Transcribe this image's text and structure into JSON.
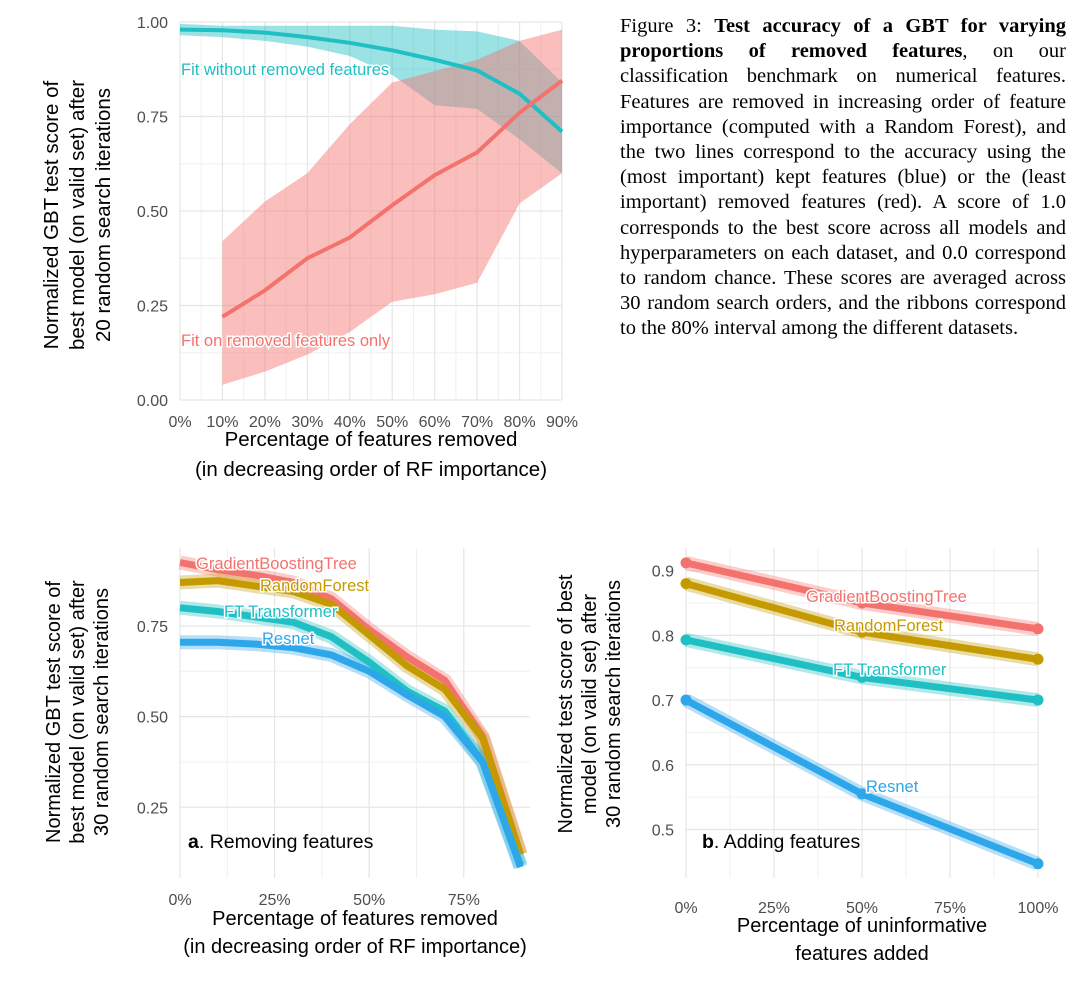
{
  "caption": {
    "label": "Figure 3:",
    "bold": "Test accuracy of a GBT for varying proportions of removed features",
    "text": ", on our classification benchmark on numerical features. Features are removed in increasing order of feature importance (computed with a Random Forest), and the two lines correspond to the accuracy using the (most important) kept features (blue) or the (least important) removed features (red). A score of 1.0 corresponds to the best score across all models and hyperparameters on each dataset, and 0.0 correspond to random chance. These scores are averaged across 30 random search orders, and the ribbons correspond to the 80% interval among the different datasets."
  },
  "chart_data": [
    {
      "id": "top",
      "type": "line",
      "title": "",
      "xlabel": [
        "Percentage of features removed",
        "(in decreasing order of RF importance)"
      ],
      "ylabel": [
        "Normalized GBT test score of",
        "best model (on valid set) after",
        "20 random search iterations"
      ],
      "x_ticks": [
        "0%",
        "10%",
        "20%",
        "30%",
        "40%",
        "50%",
        "60%",
        "70%",
        "80%",
        "90%"
      ],
      "y_ticks": [
        "0.00",
        "0.25",
        "0.50",
        "0.75",
        "1.00"
      ],
      "xlim": [
        0,
        90
      ],
      "ylim": [
        0,
        1
      ],
      "series": [
        {
          "name": "Fit without removed features",
          "color": "#1fbfc4",
          "x": [
            0,
            10,
            20,
            30,
            40,
            50,
            60,
            70,
            80,
            90
          ],
          "values": [
            0.98,
            0.978,
            0.972,
            0.96,
            0.945,
            0.925,
            0.9,
            0.872,
            0.81,
            0.71
          ],
          "lower": [
            0.965,
            0.96,
            0.95,
            0.935,
            0.91,
            0.86,
            0.78,
            0.77,
            0.69,
            0.6
          ],
          "upper": [
            0.995,
            0.99,
            0.99,
            0.99,
            0.99,
            0.99,
            0.98,
            0.975,
            0.95,
            0.84
          ]
        },
        {
          "name": "Fit on removed features only",
          "color": "#f4726d",
          "x": [
            10,
            20,
            30,
            40,
            50,
            60,
            70,
            80,
            90
          ],
          "values": [
            0.22,
            0.29,
            0.375,
            0.43,
            0.515,
            0.595,
            0.655,
            0.76,
            0.845
          ],
          "lower": [
            0.04,
            0.075,
            0.12,
            0.18,
            0.26,
            0.28,
            0.31,
            0.52,
            0.6
          ],
          "upper": [
            0.42,
            0.525,
            0.6,
            0.73,
            0.84,
            0.87,
            0.9,
            0.95,
            0.98
          ]
        }
      ]
    },
    {
      "id": "a",
      "type": "line",
      "panel_label": "a",
      "panel_title": ". Removing features",
      "xlabel": [
        "Percentage of features removed",
        "(in decreasing order of RF importance)"
      ],
      "ylabel": [
        "Normalized GBT test score of",
        "best model (on valid set) after",
        "30 random search iterations"
      ],
      "x_ticks": [
        "0%",
        "25%",
        "50%",
        "75%"
      ],
      "y_ticks": [
        "0.25",
        "0.50",
        "0.75"
      ],
      "xlim": [
        0,
        0.925
      ],
      "ylim": [
        0.055,
        0.965
      ],
      "series": [
        {
          "name": "GradientBoostingTree",
          "color": "#f4726d",
          "x": [
            0,
            0.1,
            0.2,
            0.3,
            0.4,
            0.5,
            0.6,
            0.7,
            0.8,
            0.9
          ],
          "values": [
            0.925,
            0.905,
            0.89,
            0.87,
            0.825,
            0.74,
            0.665,
            0.6,
            0.445,
            0.12
          ]
        },
        {
          "name": "RandomForest",
          "color": "#c49a00",
          "x": [
            0,
            0.1,
            0.2,
            0.3,
            0.4,
            0.5,
            0.6,
            0.7,
            0.8,
            0.9
          ],
          "values": [
            0.87,
            0.875,
            0.86,
            0.845,
            0.81,
            0.725,
            0.64,
            0.575,
            0.44,
            0.12
          ]
        },
        {
          "name": "FT Transformer",
          "color": "#1fbfc4",
          "x": [
            0,
            0.1,
            0.2,
            0.3,
            0.4,
            0.5,
            0.6,
            0.7,
            0.8,
            0.9
          ],
          "values": [
            0.8,
            0.79,
            0.775,
            0.76,
            0.72,
            0.65,
            0.57,
            0.515,
            0.375,
            0.09
          ]
        },
        {
          "name": "Resnet",
          "color": "#2ea6ea",
          "x": [
            0,
            0.1,
            0.2,
            0.3,
            0.4,
            0.5,
            0.6,
            0.7,
            0.8,
            0.9
          ],
          "values": [
            0.705,
            0.705,
            0.7,
            0.69,
            0.67,
            0.625,
            0.56,
            0.5,
            0.375,
            0.085
          ]
        }
      ]
    },
    {
      "id": "b",
      "type": "line",
      "panel_label": "b",
      "panel_title": ". Adding features",
      "xlabel": [
        "Percentage of uninformative",
        "features added"
      ],
      "ylabel": [
        "Normalized test score of best",
        "model (on valid set) after",
        "30 random search iterations"
      ],
      "x_ticks": [
        "0%",
        "25%",
        "50%",
        "75%",
        "100%"
      ],
      "y_ticks": [
        "0.5",
        "0.6",
        "0.7",
        "0.8",
        "0.9"
      ],
      "xlim": [
        0,
        1
      ],
      "ylim": [
        0.425,
        0.935
      ],
      "series": [
        {
          "name": "GradientBoostingTree",
          "color": "#f4726d",
          "x": [
            0,
            0.5,
            1
          ],
          "values": [
            0.912,
            0.85,
            0.81
          ]
        },
        {
          "name": "RandomForest",
          "color": "#c49a00",
          "x": [
            0,
            0.5,
            1
          ],
          "values": [
            0.88,
            0.805,
            0.763
          ]
        },
        {
          "name": "FT Transformer",
          "color": "#1fbfc4",
          "x": [
            0,
            0.5,
            1
          ],
          "values": [
            0.793,
            0.735,
            0.7
          ]
        },
        {
          "name": "Resnet",
          "color": "#2ea6ea",
          "x": [
            0,
            0.5,
            1
          ],
          "values": [
            0.7,
            0.555,
            0.447
          ]
        }
      ]
    }
  ]
}
